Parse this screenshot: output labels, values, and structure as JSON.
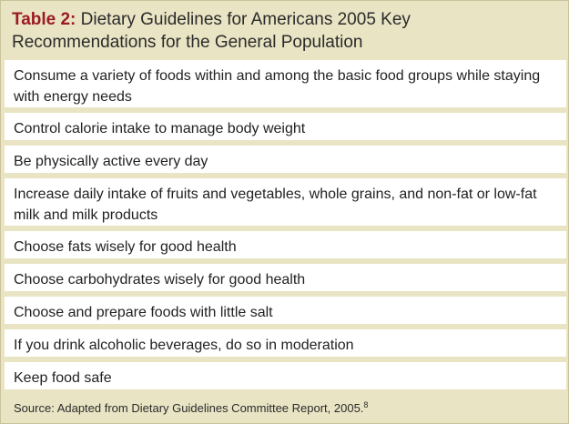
{
  "title": {
    "label": "Table 2:",
    "text": "Dietary Guidelines for Americans 2005 Key Recommendations for the General Population"
  },
  "recommendations": [
    "Consume a variety of foods within and among the basic food groups while staying with energy needs",
    "Control calorie intake to manage body weight",
    "Be physically active every day",
    "Increase daily intake of fruits and vegetables, whole grains, and non-fat or low-fat milk and milk products",
    "Choose fats wisely for good health",
    "Choose carbohydrates wisely for good health",
    "Choose and prepare foods with little salt",
    "If you drink alcoholic beverages, do so in moderation",
    "Keep food safe"
  ],
  "source": {
    "text": "Source: Adapted from Dietary Guidelines Committee Report, 2005.",
    "ref": "8"
  },
  "colors": {
    "panel_background": "#e9e4c4",
    "row_background": "#ffffff",
    "title_label": "#9b1b22",
    "text": "#222222"
  }
}
